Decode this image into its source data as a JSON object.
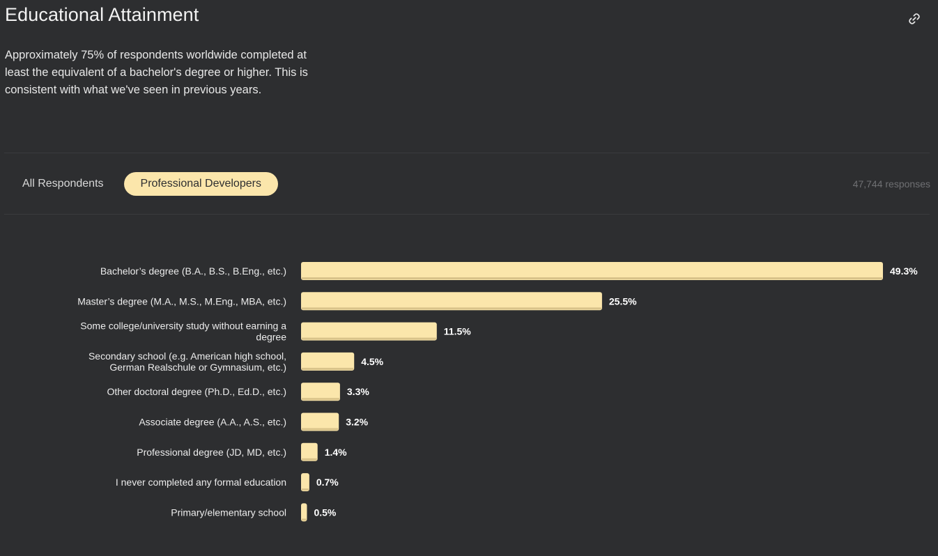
{
  "page": {
    "title": "Educational Attainment",
    "description": "Approximately 75% of respondents worldwide completed at least the equivalent of a bachelor's degree or higher. This is consistent with what we've seen in previous years.",
    "link_icon": "link-icon"
  },
  "tabs": [
    {
      "label": "All Respondents",
      "active": false
    },
    {
      "label": "Professional Developers",
      "active": true
    }
  ],
  "responses": "47,744 responses",
  "colors": {
    "background": "#2d2e30",
    "bar": "#fbe6ab",
    "bar_shade": "#d9c38a"
  },
  "chart_data": {
    "type": "bar",
    "orientation": "horizontal",
    "categories": [
      [
        "Bachelor’s degree (B.A., B.S., B.Eng., etc.)"
      ],
      [
        "Master’s degree (M.A., M.S., M.Eng., MBA, etc.)"
      ],
      [
        "Some college/university study without earning a",
        "degree"
      ],
      [
        "Secondary school (e.g. American high school,",
        "German Realschule or Gymnasium, etc.)"
      ],
      [
        "Other doctoral degree (Ph.D., Ed.D., etc.)"
      ],
      [
        "Associate degree (A.A., A.S., etc.)"
      ],
      [
        "Professional degree (JD, MD, etc.)"
      ],
      [
        "I never completed any formal education"
      ],
      [
        "Primary/elementary school"
      ]
    ],
    "values": [
      49.3,
      25.5,
      11.5,
      4.5,
      3.3,
      3.2,
      1.4,
      0.7,
      0.5
    ],
    "value_labels": [
      "49.3%",
      "25.5%",
      "11.5%",
      "4.5%",
      "3.3%",
      "3.2%",
      "1.4%",
      "0.7%",
      "0.5%"
    ]
  }
}
